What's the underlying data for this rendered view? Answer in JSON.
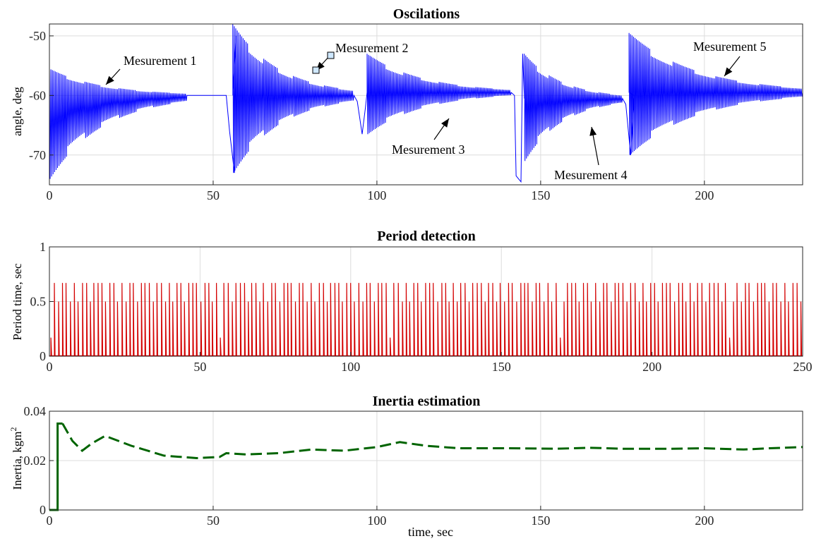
{
  "chart_data": [
    {
      "type": "line",
      "title": "Oscilations",
      "ylabel": "angle, deg",
      "xlabel": "",
      "xlim": [
        0,
        230
      ],
      "ylim": [
        -75,
        -48
      ],
      "xticks": [
        0,
        50,
        100,
        150,
        200
      ],
      "yticks": [
        -70,
        -60,
        -50
      ],
      "grid": true,
      "series": [
        {
          "color": "#0000ff",
          "description": "oscillation bursts decaying toward about -59.5 deg",
          "bursts": [
            {
              "start": 0,
              "end": 42,
              "upper0": -55.5,
              "lower0": -74,
              "center": -60
            },
            {
              "start": 56,
              "end": 93,
              "upper0": -48,
              "lower0": -73,
              "center": -60
            },
            {
              "start": 97,
              "end": 141,
              "upper0": -53,
              "lower0": -66.5,
              "center": -59.5
            },
            {
              "start": 145,
              "end": 175,
              "upper0": -53,
              "lower0": -71,
              "center": -60.5
            },
            {
              "start": 177,
              "end": 230,
              "upper0": -49.5,
              "lower0": -70,
              "center": -59.5
            }
          ],
          "points": [
            [
              0,
              -60
            ],
            [
              5,
              -56
            ],
            [
              20,
              -57
            ],
            [
              42,
              -59
            ],
            [
              55,
              -60
            ],
            [
              57,
              -73
            ],
            [
              60,
              -48
            ],
            [
              93,
              -60
            ],
            [
              96,
              -66.5
            ],
            [
              100,
              -53
            ],
            [
              141,
              -59.5
            ],
            [
              144,
              -74.5
            ],
            [
              147,
              -53
            ],
            [
              175,
              -60
            ],
            [
              178,
              -70
            ],
            [
              182,
              -49.5
            ],
            [
              230,
              -59.3
            ]
          ]
        }
      ],
      "annotations": [
        {
          "text": "Mesurement 1",
          "x": 17,
          "y": -57.5
        },
        {
          "text": "Mesurement 2",
          "x": 81,
          "y": -55.5
        },
        {
          "text": "Mesurement 3",
          "x": 124,
          "y": -61
        },
        {
          "text": "Mesurement 4",
          "x": 165,
          "y": -62.5
        },
        {
          "text": "Mesurement 5",
          "x": 206,
          "y": -57
        }
      ]
    },
    {
      "type": "line",
      "title": "Period detection",
      "ylabel": "Period time, sec",
      "xlabel": "",
      "xlim": [
        0,
        250
      ],
      "ylim": [
        0,
        1
      ],
      "xticks": [
        0,
        50,
        100,
        150,
        200,
        250
      ],
      "yticks": [
        0,
        0.5,
        1
      ],
      "grid": true,
      "series": [
        {
          "color": "#d40000",
          "description": "spikes with heights 0.67 / 0.5 returning to 0",
          "spike_heights": [
            0.67,
            0.5,
            0.17
          ],
          "spike_interval": 1.33
        }
      ]
    },
    {
      "type": "line",
      "title": "Inertia estimation",
      "ylabel": "Inertia, kgm^2",
      "xlabel": "time, sec",
      "xlim": [
        0,
        230
      ],
      "ylim": [
        0,
        0.04
      ],
      "xticks": [
        0,
        50,
        100,
        150,
        200
      ],
      "yticks": [
        0,
        0.02,
        0.04
      ],
      "grid": true,
      "series": [
        {
          "color": "#006400",
          "points": [
            [
              0,
              0
            ],
            [
              2.5,
              0
            ],
            [
              2.5,
              0.035
            ],
            [
              4,
              0.035
            ],
            [
              7,
              0.028
            ],
            [
              10,
              0.024
            ],
            [
              13,
              0.027
            ],
            [
              17,
              0.03
            ],
            [
              25,
              0.026
            ],
            [
              35,
              0.022
            ],
            [
              45,
              0.021
            ],
            [
              52,
              0.0215
            ],
            [
              54,
              0.023
            ],
            [
              60,
              0.0225
            ],
            [
              70,
              0.023
            ],
            [
              80,
              0.0245
            ],
            [
              90,
              0.024
            ],
            [
              100,
              0.0255
            ],
            [
              107,
              0.0275
            ],
            [
              115,
              0.026
            ],
            [
              125,
              0.025
            ],
            [
              140,
              0.025
            ],
            [
              155,
              0.0248
            ],
            [
              165,
              0.0252
            ],
            [
              175,
              0.0248
            ],
            [
              190,
              0.0248
            ],
            [
              200,
              0.025
            ],
            [
              212,
              0.0245
            ],
            [
              220,
              0.025
            ],
            [
              230,
              0.0255
            ]
          ]
        }
      ]
    }
  ],
  "panel_labels": {
    "inertia_ylabel_prefix": "Inertia, kgm",
    "inertia_ylabel_exp": "2"
  }
}
